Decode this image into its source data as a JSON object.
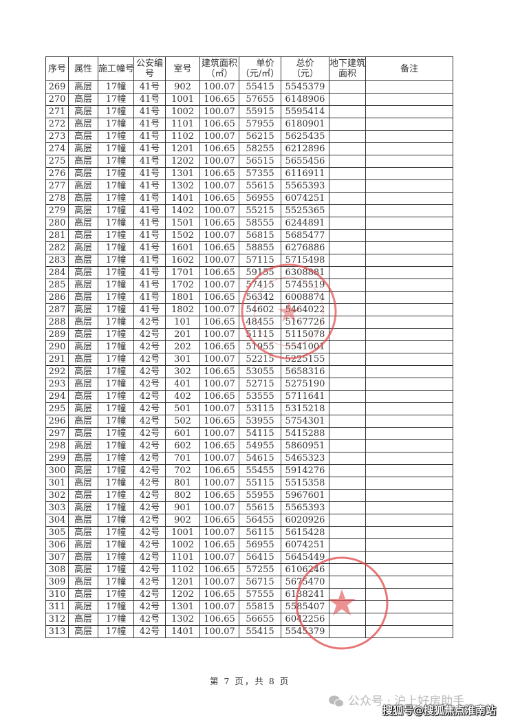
{
  "table": {
    "headers": [
      "序号",
      "属性",
      "施工幢号",
      "公安编号",
      "室号",
      "建筑面积（㎡）",
      "单价（元/㎡）",
      "总价（元）",
      "地下建筑面积",
      "备注"
    ],
    "rows": [
      [
        "269",
        "高层",
        "17幢",
        "41号",
        "902",
        "100.07",
        "55415",
        "5545379",
        "",
        ""
      ],
      [
        "270",
        "高层",
        "17幢",
        "41号",
        "1001",
        "106.65",
        "57655",
        "6148906",
        "",
        ""
      ],
      [
        "271",
        "高层",
        "17幢",
        "41号",
        "1002",
        "100.07",
        "55915",
        "5595414",
        "",
        ""
      ],
      [
        "272",
        "高层",
        "17幢",
        "41号",
        "1101",
        "106.65",
        "57955",
        "6180901",
        "",
        ""
      ],
      [
        "273",
        "高层",
        "17幢",
        "41号",
        "1102",
        "100.07",
        "56215",
        "5625435",
        "",
        ""
      ],
      [
        "274",
        "高层",
        "17幢",
        "41号",
        "1201",
        "106.65",
        "58255",
        "6212896",
        "",
        ""
      ],
      [
        "275",
        "高层",
        "17幢",
        "41号",
        "1202",
        "100.07",
        "56515",
        "5655456",
        "",
        ""
      ],
      [
        "276",
        "高层",
        "17幢",
        "41号",
        "1301",
        "106.65",
        "57355",
        "6116911",
        "",
        ""
      ],
      [
        "277",
        "高层",
        "17幢",
        "41号",
        "1302",
        "100.07",
        "55615",
        "5565393",
        "",
        ""
      ],
      [
        "278",
        "高层",
        "17幢",
        "41号",
        "1401",
        "106.65",
        "56955",
        "6074251",
        "",
        ""
      ],
      [
        "279",
        "高层",
        "17幢",
        "41号",
        "1402",
        "100.07",
        "55215",
        "5525365",
        "",
        ""
      ],
      [
        "280",
        "高层",
        "17幢",
        "41号",
        "1501",
        "106.65",
        "58555",
        "6244891",
        "",
        ""
      ],
      [
        "281",
        "高层",
        "17幢",
        "41号",
        "1502",
        "100.07",
        "56815",
        "5685477",
        "",
        ""
      ],
      [
        "282",
        "高层",
        "17幢",
        "41号",
        "1601",
        "106.65",
        "58855",
        "6276886",
        "",
        ""
      ],
      [
        "283",
        "高层",
        "17幢",
        "41号",
        "1602",
        "100.07",
        "57115",
        "5715498",
        "",
        ""
      ],
      [
        "284",
        "高层",
        "17幢",
        "41号",
        "1701",
        "106.65",
        "59155",
        "6308881",
        "",
        ""
      ],
      [
        "285",
        "高层",
        "17幢",
        "41号",
        "1702",
        "100.07",
        "57415",
        "5745519",
        "",
        ""
      ],
      [
        "286",
        "高层",
        "17幢",
        "41号",
        "1801",
        "106.65",
        "56342",
        "6008874",
        "",
        ""
      ],
      [
        "287",
        "高层",
        "17幢",
        "41号",
        "1802",
        "100.07",
        "54602",
        "5464022",
        "",
        ""
      ],
      [
        "288",
        "高层",
        "17幢",
        "42号",
        "101",
        "106.65",
        "48455",
        "5167726",
        "",
        ""
      ],
      [
        "289",
        "高层",
        "17幢",
        "42号",
        "201",
        "100.07",
        "51115",
        "5115078",
        "",
        ""
      ],
      [
        "290",
        "高层",
        "17幢",
        "42号",
        "202",
        "106.65",
        "51955",
        "5541001",
        "",
        ""
      ],
      [
        "291",
        "高层",
        "17幢",
        "42号",
        "301",
        "100.07",
        "52215",
        "5225155",
        "",
        ""
      ],
      [
        "292",
        "高层",
        "17幢",
        "42号",
        "302",
        "106.65",
        "53055",
        "5658316",
        "",
        ""
      ],
      [
        "293",
        "高层",
        "17幢",
        "42号",
        "401",
        "100.07",
        "52715",
        "5275190",
        "",
        ""
      ],
      [
        "294",
        "高层",
        "17幢",
        "42号",
        "402",
        "106.65",
        "53555",
        "5711641",
        "",
        ""
      ],
      [
        "295",
        "高层",
        "17幢",
        "42号",
        "501",
        "100.07",
        "53115",
        "5315218",
        "",
        ""
      ],
      [
        "296",
        "高层",
        "17幢",
        "42号",
        "502",
        "106.65",
        "53955",
        "5754301",
        "",
        ""
      ],
      [
        "297",
        "高层",
        "17幢",
        "42号",
        "601",
        "100.07",
        "54115",
        "5415288",
        "",
        ""
      ],
      [
        "298",
        "高层",
        "17幢",
        "42号",
        "602",
        "106.65",
        "54955",
        "5860951",
        "",
        ""
      ],
      [
        "299",
        "高层",
        "17幢",
        "42号",
        "701",
        "100.07",
        "54615",
        "5465323",
        "",
        ""
      ],
      [
        "300",
        "高层",
        "17幢",
        "42号",
        "702",
        "106.65",
        "55455",
        "5914276",
        "",
        ""
      ],
      [
        "301",
        "高层",
        "17幢",
        "42号",
        "801",
        "100.07",
        "55115",
        "5515358",
        "",
        ""
      ],
      [
        "302",
        "高层",
        "17幢",
        "42号",
        "802",
        "106.65",
        "55955",
        "5967601",
        "",
        ""
      ],
      [
        "303",
        "高层",
        "17幢",
        "42号",
        "901",
        "100.07",
        "55615",
        "5565393",
        "",
        ""
      ],
      [
        "304",
        "高层",
        "17幢",
        "42号",
        "902",
        "106.65",
        "56455",
        "6020926",
        "",
        ""
      ],
      [
        "305",
        "高层",
        "17幢",
        "42号",
        "1001",
        "100.07",
        "56115",
        "5615428",
        "",
        ""
      ],
      [
        "306",
        "高层",
        "17幢",
        "42号",
        "1002",
        "106.65",
        "56955",
        "6074251",
        "",
        ""
      ],
      [
        "307",
        "高层",
        "17幢",
        "42号",
        "1101",
        "100.07",
        "56415",
        "5645449",
        "",
        ""
      ],
      [
        "308",
        "高层",
        "17幢",
        "42号",
        "1102",
        "106.65",
        "57255",
        "6106246",
        "",
        ""
      ],
      [
        "309",
        "高层",
        "17幢",
        "42号",
        "1201",
        "100.07",
        "56715",
        "5675470",
        "",
        ""
      ],
      [
        "310",
        "高层",
        "17幢",
        "42号",
        "1202",
        "106.65",
        "57555",
        "6138241",
        "",
        ""
      ],
      [
        "311",
        "高层",
        "17幢",
        "42号",
        "1301",
        "100.07",
        "55815",
        "5585407",
        "",
        ""
      ],
      [
        "312",
        "高层",
        "17幢",
        "42号",
        "1302",
        "106.65",
        "56655",
        "6042256",
        "",
        ""
      ],
      [
        "313",
        "高层",
        "17幢",
        "42号",
        "1401",
        "100.07",
        "55415",
        "5545379",
        "",
        ""
      ]
    ]
  },
  "footer": {
    "page_text": "第 7 页，共 8 页"
  },
  "watermark": {
    "wechat": "公众号 · 沪上好房助手",
    "sohu": "搜狐号@搜狐焦点淮南站",
    "icon": "wechat-icon"
  },
  "colors": {
    "stamp": "#e04848",
    "text": "#333333"
  }
}
